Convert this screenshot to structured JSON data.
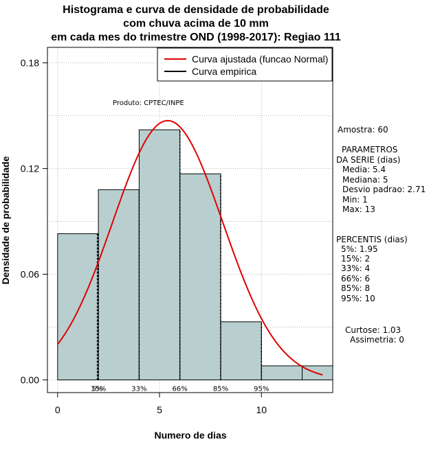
{
  "title_lines": [
    "Histograma e curva de densidade de probabilidade",
    "com chuva acima de 10 mm",
    "em cada mes do trimestre OND (1998-2017): Regiao 111"
  ],
  "product": "Produto: CPTEC/INPE",
  "legend": {
    "fitted": "Curva ajustada (funcao Normal)",
    "empirical": "Curva empirica"
  },
  "colors": {
    "bar_fill": "#b9cfcf",
    "fitted_curve": "#e00000",
    "empirical": "#000000",
    "grid": "#b0b0b0"
  },
  "stats": {
    "sample": "Amostra: 60",
    "params_title_1": "PARAMETROS",
    "params_title_2": "DA SERIE (dias)",
    "mean": "Media: 5.4",
    "median": "Mediana: 5",
    "sd": "Desvio padrao: 2.71",
    "min": "Min: 1",
    "max": "Max: 13",
    "percentiles_title": "PERCENTIS (dias)",
    "p5": "5%: 1.95",
    "p15": "15%: 2",
    "p33": "33%: 4",
    "p66": "66%: 6",
    "p85": "85%: 8",
    "p95": "95%: 10",
    "kurtosis": "Curtose: 1.03",
    "skewness": "Assimetria: 0"
  },
  "chart_data": {
    "type": "bar",
    "xlabel": "Numero de dias",
    "ylabel": "Densidade de probabilidade",
    "xlim": [
      -0.5,
      13.5
    ],
    "ylim": [
      -0.0072,
      0.1888
    ],
    "x_ticks": [
      0,
      5,
      10
    ],
    "x_tick_labels": [
      "0",
      "5",
      "10"
    ],
    "y_ticks": [
      0.0,
      0.06,
      0.12,
      0.18
    ],
    "y_tick_labels": [
      "0.00",
      "0.06",
      "0.12",
      "0.18"
    ],
    "grid": true,
    "legend_position": "top-right",
    "bins": [
      {
        "x0": 0,
        "x1": 2,
        "density": 0.083
      },
      {
        "x0": 2,
        "x1": 4,
        "density": 0.108
      },
      {
        "x0": 4,
        "x1": 6,
        "density": 0.142
      },
      {
        "x0": 6,
        "x1": 8,
        "density": 0.117
      },
      {
        "x0": 8,
        "x1": 10,
        "density": 0.033
      },
      {
        "x0": 10,
        "x1": 12,
        "density": 0.008
      },
      {
        "x0": 12,
        "x1": 14,
        "density": 0.008
      }
    ],
    "fitted_normal": {
      "mean": 5.4,
      "sd": 2.71,
      "x_range": [
        0,
        13
      ]
    },
    "percentile_markers": [
      {
        "x": 1.95,
        "label": "5%"
      },
      {
        "x": 2,
        "label": "15%"
      },
      {
        "x": 4,
        "label": "33%"
      },
      {
        "x": 6,
        "label": "66%"
      },
      {
        "x": 8,
        "label": "85%"
      },
      {
        "x": 10,
        "label": "95%"
      }
    ]
  }
}
